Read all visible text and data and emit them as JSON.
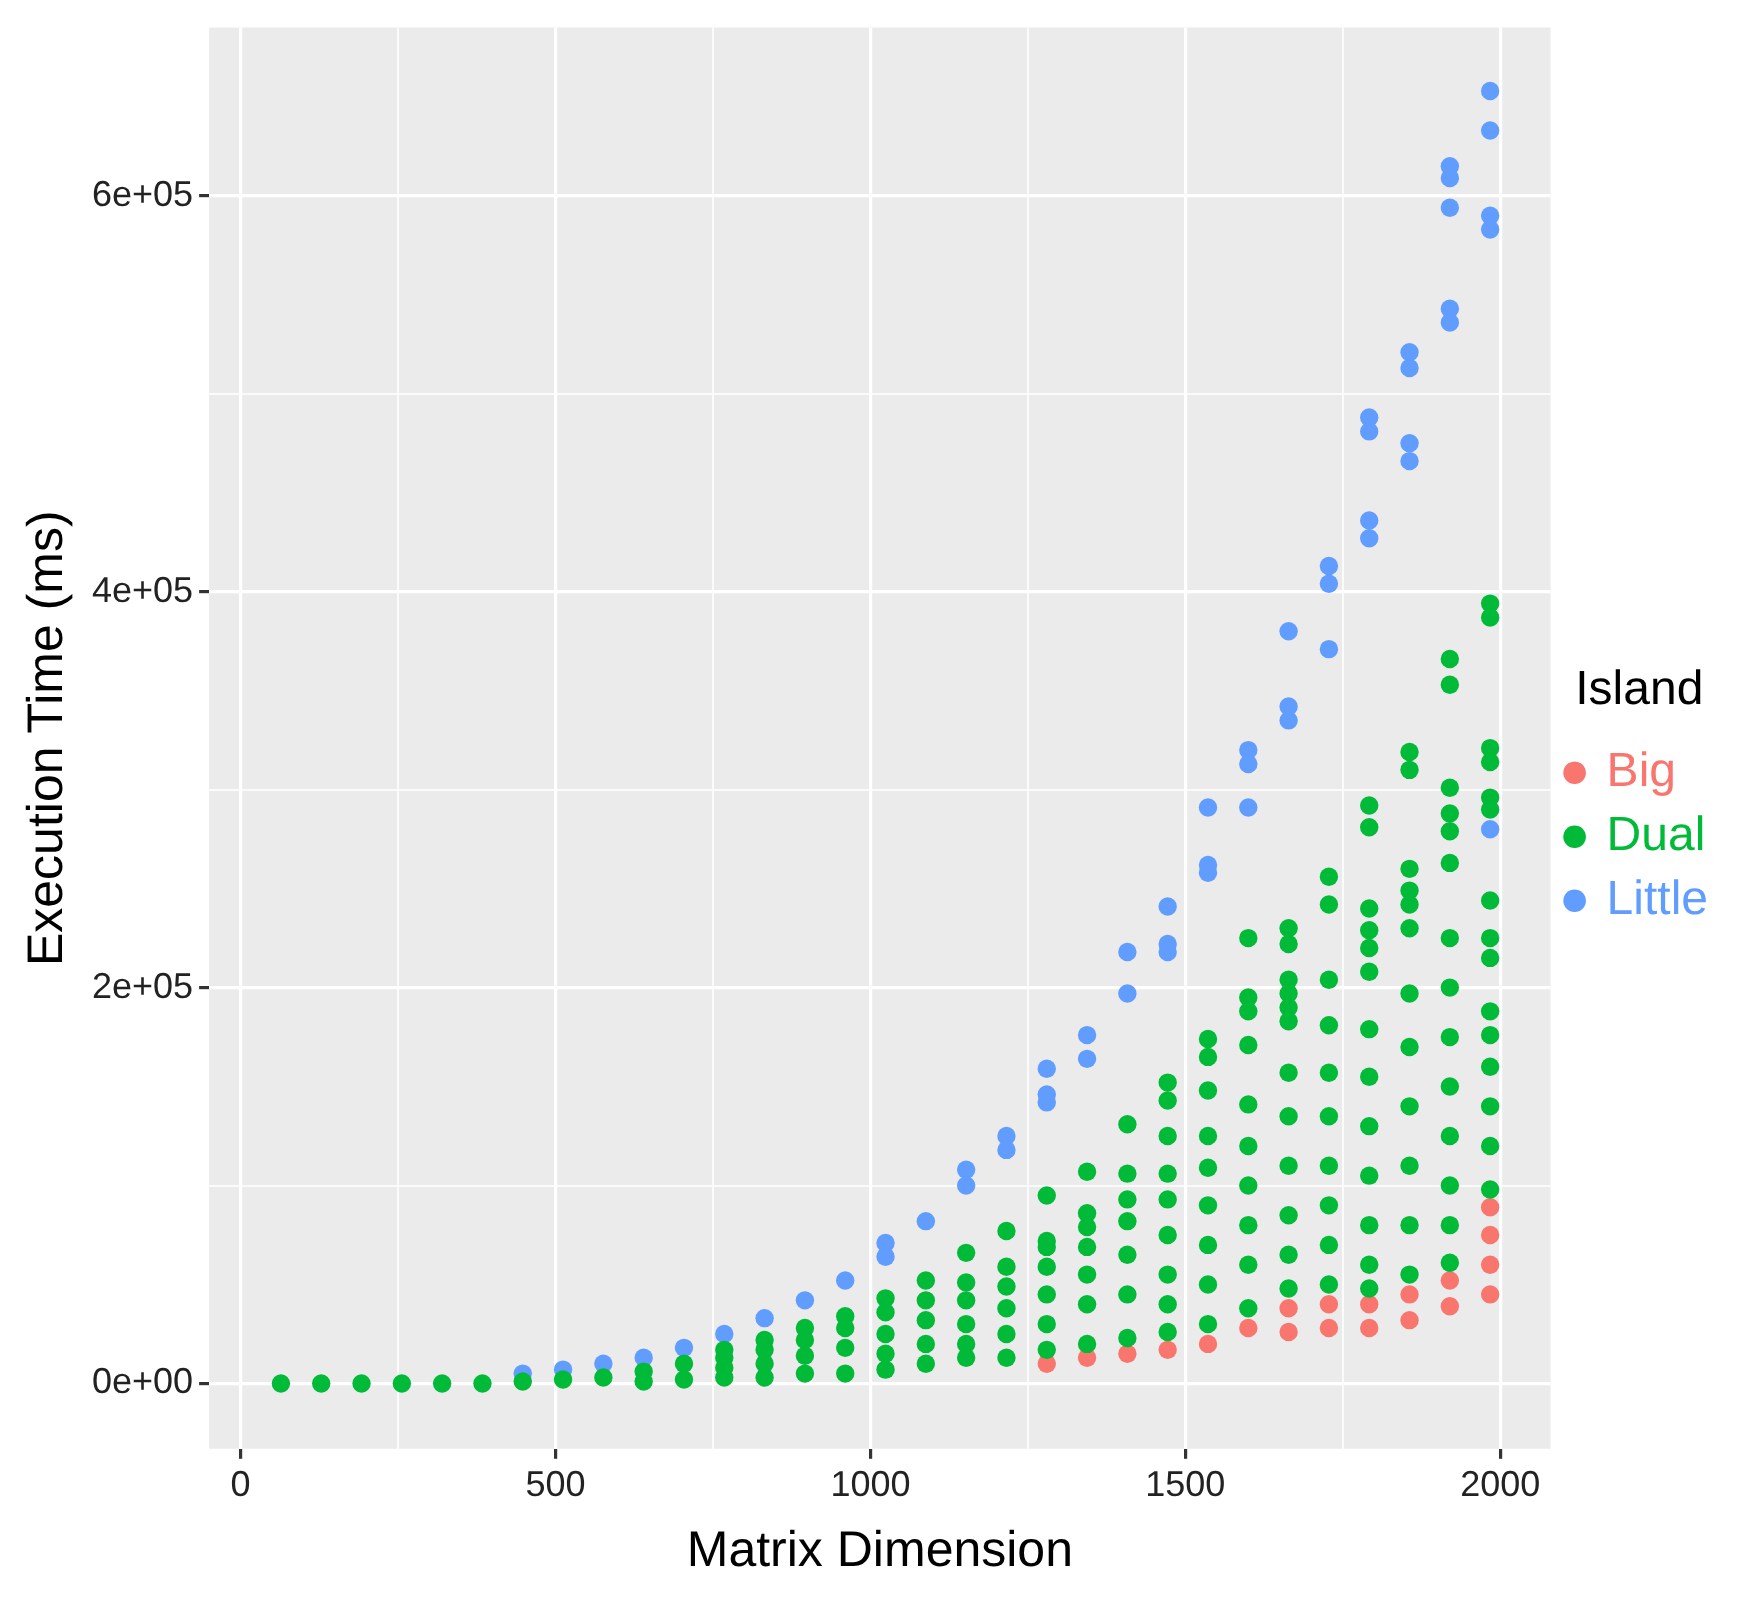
{
  "chart_data": {
    "type": "scatter",
    "xlabel": "Matrix Dimension",
    "ylabel": "Execution Time (ms)",
    "legend_title": "Island",
    "legend": "right",
    "grid": true,
    "marker": "circle",
    "xlim": [
      -50,
      2080
    ],
    "ylim": [
      -33000,
      685000
    ],
    "xticks": [
      0,
      {
        "value": 250,
        "label": null
      },
      500,
      {
        "value": 750,
        "label": null
      },
      1000,
      {
        "value": 1250,
        "label": null
      },
      1500,
      {
        "value": 1750,
        "label": null
      },
      2000
    ],
    "yticks": [
      {
        "value": 0,
        "label": "0e+00"
      },
      {
        "value": 100000,
        "label": null
      },
      {
        "value": 200000,
        "label": "2e+05"
      },
      {
        "value": 300000,
        "label": null
      },
      {
        "value": 400000,
        "label": "4e+05"
      },
      {
        "value": 500000,
        "label": null
      },
      {
        "value": 600000,
        "label": "6e+05"
      }
    ],
    "series": [
      {
        "name": "Big",
        "color": "#f8766d",
        "x": [
          1280,
          1344,
          1408,
          1472,
          1536,
          1600,
          1664,
          1664,
          1728,
          1728,
          1792,
          1792,
          1856,
          1856,
          1920,
          1920,
          1984,
          1984,
          1984,
          1984
        ],
        "values": [
          10000,
          13000,
          15000,
          17000,
          20000,
          28000,
          38000,
          26000,
          40000,
          28000,
          40000,
          28000,
          45000,
          32000,
          52000,
          39000,
          89000,
          75000,
          60000,
          45000
        ]
      },
      {
        "name": "Dual",
        "color": "#00ba38",
        "x": [
          64,
          128,
          192,
          256,
          320,
          384,
          448,
          512,
          576,
          640,
          640,
          704,
          704,
          768,
          768,
          768,
          768,
          832,
          832,
          832,
          832,
          896,
          896,
          896,
          896,
          960,
          960,
          960,
          960,
          1024,
          1024,
          1024,
          1024,
          1024,
          1088,
          1088,
          1088,
          1088,
          1088,
          1152,
          1152,
          1152,
          1152,
          1152,
          1152,
          1216,
          1216,
          1216,
          1216,
          1216,
          1216,
          1280,
          1280,
          1280,
          1280,
          1280,
          1280,
          1280,
          1344,
          1344,
          1344,
          1344,
          1344,
          1344,
          1344,
          1408,
          1408,
          1408,
          1408,
          1408,
          1408,
          1408,
          1472,
          1472,
          1472,
          1472,
          1472,
          1472,
          1472,
          1472,
          1472,
          1536,
          1536,
          1536,
          1536,
          1536,
          1536,
          1536,
          1536,
          1536,
          1600,
          1600,
          1600,
          1600,
          1600,
          1600,
          1600,
          1600,
          1600,
          1600,
          1664,
          1664,
          1664,
          1664,
          1664,
          1664,
          1664,
          1664,
          1664,
          1664,
          1664,
          1664,
          1728,
          1728,
          1728,
          1728,
          1728,
          1728,
          1728,
          1728,
          1728,
          1728,
          1792,
          1792,
          1792,
          1792,
          1792,
          1792,
          1792,
          1792,
          1792,
          1792,
          1792,
          1792,
          1792,
          1856,
          1856,
          1856,
          1856,
          1856,
          1856,
          1856,
          1856,
          1856,
          1856,
          1856,
          1856,
          1920,
          1920,
          1920,
          1920,
          1920,
          1920,
          1920,
          1920,
          1920,
          1920,
          1920,
          1920,
          1920,
          1920,
          1984,
          1984,
          1984,
          1984,
          1984,
          1984,
          1984,
          1984,
          1984,
          1984,
          1984,
          1984,
          1984,
          1984,
          1984
        ],
        "values": [
          0,
          0,
          0,
          0,
          0,
          0,
          1000,
          2000,
          3000,
          6000,
          1000,
          10000,
          2000,
          17000,
          13000,
          8000,
          3000,
          22000,
          17000,
          10000,
          3000,
          28000,
          22000,
          14000,
          5000,
          34000,
          28000,
          18000,
          5000,
          43000,
          36000,
          25000,
          15000,
          7000,
          52000,
          42000,
          32000,
          20000,
          10000,
          66000,
          51000,
          42000,
          30000,
          20000,
          13000,
          77000,
          59000,
          49000,
          38000,
          25000,
          13000,
          95000,
          72000,
          69000,
          59000,
          45000,
          30000,
          17000,
          107000,
          86000,
          79000,
          69000,
          55000,
          40000,
          20000,
          131000,
          106000,
          93000,
          82000,
          65000,
          45000,
          23000,
          152000,
          143000,
          125000,
          106000,
          93000,
          75000,
          55000,
          40000,
          26000,
          174000,
          165000,
          148000,
          125000,
          109000,
          90000,
          70000,
          50000,
          30000,
          225000,
          195000,
          188000,
          171000,
          141000,
          120000,
          100000,
          80000,
          60000,
          38000,
          230000,
          222000,
          204000,
          197000,
          190000,
          183000,
          157000,
          135000,
          110000,
          85000,
          65000,
          48000,
          256000,
          242000,
          204000,
          181000,
          157000,
          135000,
          110000,
          90000,
          70000,
          50000,
          292000,
          281000,
          240000,
          229000,
          220000,
          208000,
          179000,
          155000,
          130000,
          105000,
          80000,
          60000,
          48000,
          319000,
          310000,
          260000,
          249000,
          242000,
          230000,
          197000,
          170000,
          140000,
          110000,
          80000,
          55000,
          366000,
          353000,
          301000,
          288000,
          279000,
          263000,
          225000,
          200000,
          175000,
          150000,
          125000,
          100000,
          80000,
          61000,
          394000,
          387000,
          321000,
          314000,
          296000,
          290000,
          244000,
          225000,
          215000,
          188000,
          176000,
          160000,
          140000,
          120000,
          98000
        ]
      },
      {
        "name": "Little",
        "color": "#619cff",
        "x": [
          448,
          512,
          576,
          640,
          704,
          768,
          832,
          896,
          960,
          1024,
          1024,
          1088,
          1152,
          1152,
          1216,
          1216,
          1280,
          1280,
          1280,
          1344,
          1344,
          1408,
          1408,
          1472,
          1472,
          1472,
          1536,
          1536,
          1536,
          1600,
          1600,
          1600,
          1664,
          1664,
          1664,
          1728,
          1728,
          1728,
          1792,
          1792,
          1792,
          1792,
          1856,
          1856,
          1856,
          1856,
          1920,
          1920,
          1920,
          1920,
          1920,
          1984,
          1984,
          1984,
          1984,
          1984
        ],
        "values": [
          5000,
          7000,
          10000,
          13000,
          18000,
          25000,
          33000,
          42000,
          52000,
          71000,
          64000,
          82000,
          108000,
          100000,
          125000,
          118000,
          159000,
          146000,
          142000,
          176000,
          164000,
          218000,
          197000,
          241000,
          222000,
          218000,
          291000,
          262000,
          258000,
          320000,
          313000,
          291000,
          380000,
          342000,
          335000,
          413000,
          404000,
          371000,
          488000,
          481000,
          436000,
          427000,
          521000,
          513000,
          475000,
          466000,
          615000,
          609000,
          594000,
          543000,
          536000,
          653000,
          633000,
          590000,
          583000,
          280000
        ]
      }
    ]
  }
}
